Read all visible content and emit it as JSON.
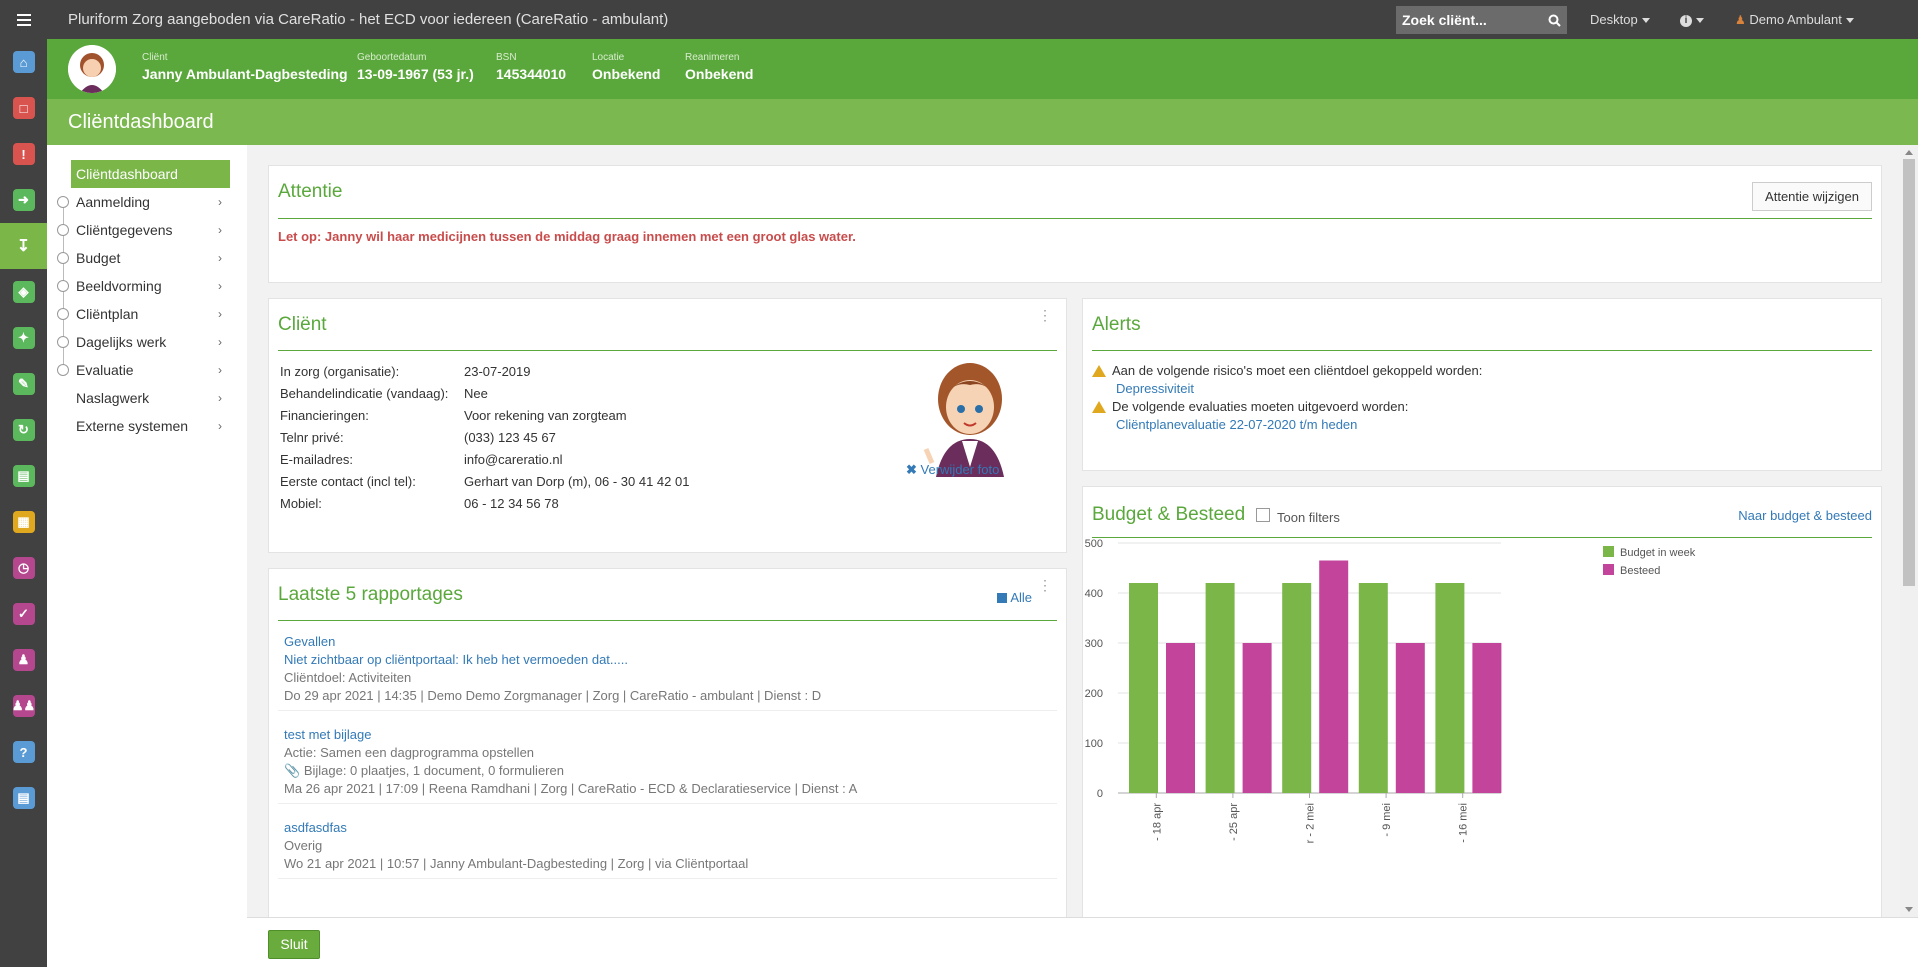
{
  "app": {
    "title": "Pluriform Zorg aangeboden via CareRatio - het ECD voor iedereen  (CareRatio - ambulant)"
  },
  "topbar": {
    "search_placeholder": "Zoek cliënt...",
    "desktop_label": "Desktop",
    "user_label": "Demo Ambulant"
  },
  "client": {
    "fields": [
      {
        "label": "Cliënt",
        "value": "Janny Ambulant-Dagbesteding"
      },
      {
        "label": "Geboortedatum",
        "value": "13-09-1967 (53 jr.)"
      },
      {
        "label": "BSN",
        "value": "145344010"
      },
      {
        "label": "Locatie",
        "value": "Onbekend"
      },
      {
        "label": "Reanimeren",
        "value": "Onbekend"
      }
    ]
  },
  "page": {
    "title": "Cliëntdashboard"
  },
  "nav": {
    "active": "Cliëntdashboard",
    "items": [
      "Aanmelding",
      "Cliëntgegevens",
      "Budget",
      "Beeldvorming",
      "Cliëntplan",
      "Dagelijks werk",
      "Evaluatie",
      "Naslagwerk",
      "Externe systemen"
    ]
  },
  "attentie": {
    "title": "Attentie",
    "button": "Attentie wijzigen",
    "message": "Let op: Janny wil haar medicijnen tussen de middag graag innemen met een groot glas water."
  },
  "client_panel": {
    "title": "Cliënt",
    "rows": [
      {
        "label": "In zorg (organisatie):",
        "value": "23-07-2019"
      },
      {
        "label": "Behandelindicatie (vandaag):",
        "value": "Nee"
      },
      {
        "label": "Financieringen:",
        "value": "Voor rekening van zorgteam"
      },
      {
        "label": "Telnr privé:",
        "value": "(033) 123 45 67"
      },
      {
        "label": "E-mailadres:",
        "value": "info@careratio.nl"
      },
      {
        "label": "Eerste contact (incl tel):",
        "value": "Gerhart van Dorp (m), 06 - 30 41 42 01"
      },
      {
        "label": "Mobiel:",
        "value": "06 - 12 34 56 78"
      }
    ],
    "remove_photo": "Verwijder foto"
  },
  "alerts": {
    "title": "Alerts",
    "items": [
      {
        "text": "Aan de volgende risico's moet een cliëntdoel gekoppeld worden:",
        "link": "Depressiviteit"
      },
      {
        "text": "De volgende evaluaties moeten uitgevoerd worden:",
        "link": "Cliëntplanevaluatie 22-07-2020 t/m heden"
      }
    ]
  },
  "reports": {
    "title": "Laatste 5 rapportages",
    "all_label": "Alle",
    "items": [
      {
        "title": "Gevallen",
        "subtitle": "Niet zichtbaar op cliëntportaal: Ik heb het vermoeden dat.....",
        "goal": "Cliëntdoel: Activiteiten",
        "meta": "Do 29 apr 2021 | 14:35 | Demo Demo Zorgmanager | Zorg | CareRatio - ambulant | Dienst : D"
      },
      {
        "title": "test met bijlage",
        "goal": "Actie: Samen een dagprogramma opstellen",
        "attachment": "Bijlage: 0 plaatjes, 1 document, 0 formulieren",
        "meta": "Ma 26 apr 2021 | 17:09 | Reena Ramdhani | Zorg | CareRatio - ECD & Declaratieservice | Dienst : A"
      },
      {
        "title": "asdfasdfas",
        "goal": "Overig",
        "meta": "Wo 21 apr 2021 | 10:57 | Janny Ambulant-Dagbesteding | Zorg | via Cliëntportaal"
      }
    ]
  },
  "budget": {
    "title": "Budget & Besteed",
    "filter_label": "Toon filters",
    "link": "Naar budget & besteed"
  },
  "footer": {
    "close": "Sluit"
  },
  "colors": {
    "green": "#5aa83c",
    "light_green": "#7ab648",
    "magenta": "#c2449b",
    "topbar": "#414141"
  },
  "chart_data": {
    "type": "bar",
    "categories": [
      "- 18 apr",
      "- 25 apr",
      "r - 2 mei",
      "- 9 mei",
      "- 16 mei"
    ],
    "series": [
      {
        "name": "Budget in week",
        "color": "#7ab648",
        "values": [
          420,
          420,
          420,
          420,
          420
        ]
      },
      {
        "name": "Besteed",
        "color": "#c2449b",
        "values": [
          300,
          300,
          465,
          300,
          300
        ]
      }
    ],
    "yticks": [
      0,
      100,
      200,
      300,
      400,
      500
    ],
    "ylim": [
      0,
      500
    ],
    "legend": "top-right",
    "grid": true
  }
}
